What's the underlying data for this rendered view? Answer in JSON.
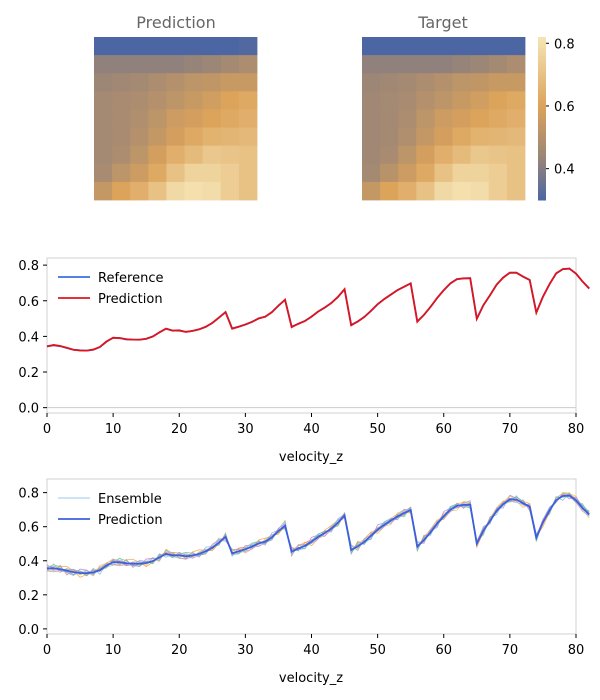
{
  "colors": {
    "reference": "#3b6fe0",
    "prediction_line": "#e0141c",
    "ensemble_prediction": "#3b5fe0",
    "axis_border": "#d0d0d0",
    "colormap": [
      "#4c66a3",
      "#9c8676",
      "#dca35b",
      "#f6e5b5"
    ]
  },
  "chart_data": [
    {
      "type": "heatmap",
      "title": "Prediction",
      "rows": 9,
      "cols": 9,
      "values": [
        [
          0.3,
          0.3,
          0.3,
          0.3,
          0.3,
          0.29,
          0.29,
          0.3,
          0.31
        ],
        [
          0.42,
          0.42,
          0.42,
          0.42,
          0.42,
          0.43,
          0.44,
          0.46,
          0.48
        ],
        [
          0.44,
          0.45,
          0.46,
          0.48,
          0.5,
          0.52,
          0.53,
          0.55,
          0.55
        ],
        [
          0.46,
          0.47,
          0.48,
          0.5,
          0.52,
          0.55,
          0.57,
          0.6,
          0.62
        ],
        [
          0.46,
          0.47,
          0.49,
          0.52,
          0.56,
          0.58,
          0.6,
          0.62,
          0.64
        ],
        [
          0.46,
          0.47,
          0.5,
          0.54,
          0.58,
          0.62,
          0.65,
          0.66,
          0.67
        ],
        [
          0.46,
          0.48,
          0.52,
          0.58,
          0.64,
          0.68,
          0.72,
          0.71,
          0.7
        ],
        [
          0.47,
          0.52,
          0.56,
          0.62,
          0.7,
          0.76,
          0.76,
          0.74,
          0.7
        ],
        [
          0.54,
          0.6,
          0.64,
          0.7,
          0.78,
          0.8,
          0.79,
          0.74,
          0.7
        ]
      ]
    },
    {
      "type": "heatmap",
      "title": "Target",
      "rows": 9,
      "cols": 9,
      "values": [
        [
          0.3,
          0.3,
          0.3,
          0.3,
          0.3,
          0.29,
          0.29,
          0.3,
          0.3
        ],
        [
          0.42,
          0.42,
          0.42,
          0.42,
          0.42,
          0.43,
          0.44,
          0.46,
          0.48
        ],
        [
          0.44,
          0.45,
          0.46,
          0.48,
          0.5,
          0.52,
          0.53,
          0.55,
          0.55
        ],
        [
          0.45,
          0.46,
          0.47,
          0.5,
          0.52,
          0.55,
          0.57,
          0.6,
          0.62
        ],
        [
          0.45,
          0.46,
          0.48,
          0.52,
          0.56,
          0.58,
          0.6,
          0.62,
          0.64
        ],
        [
          0.45,
          0.46,
          0.49,
          0.54,
          0.58,
          0.62,
          0.65,
          0.66,
          0.67
        ],
        [
          0.45,
          0.47,
          0.52,
          0.58,
          0.64,
          0.68,
          0.72,
          0.71,
          0.7
        ],
        [
          0.46,
          0.51,
          0.56,
          0.62,
          0.7,
          0.76,
          0.76,
          0.74,
          0.7
        ],
        [
          0.54,
          0.6,
          0.64,
          0.7,
          0.78,
          0.8,
          0.79,
          0.74,
          0.7
        ]
      ],
      "colorbar": {
        "ticks": [
          0.4,
          0.6,
          0.8
        ],
        "tick_labels": [
          "0.4",
          "0.6",
          "0.8"
        ],
        "range": [
          0.3,
          0.82
        ]
      }
    },
    {
      "type": "line",
      "xlabel": "velocity_z",
      "xlim": [
        0,
        80
      ],
      "ylim": [
        -0.03,
        0.84
      ],
      "xticks": [
        0,
        10,
        20,
        30,
        40,
        50,
        60,
        70,
        80
      ],
      "xtick_labels": [
        "0",
        "10",
        "20",
        "30",
        "40",
        "50",
        "60",
        "70",
        "80"
      ],
      "yticks": [
        0.0,
        0.2,
        0.4,
        0.6,
        0.8
      ],
      "ytick_labels": [
        "0.0",
        "0.2",
        "0.4",
        "0.6",
        "0.8"
      ],
      "legend_position": "upper-left",
      "series": [
        {
          "name": "Reference",
          "values": [
            0.345,
            0.35,
            0.345,
            0.335,
            0.325,
            0.322,
            0.32,
            0.325,
            0.34,
            0.37,
            0.393,
            0.39,
            0.383,
            0.382,
            0.382,
            0.386,
            0.4,
            0.422,
            0.444,
            0.433,
            0.432,
            0.426,
            0.43,
            0.44,
            0.453,
            0.476,
            0.505,
            0.537,
            0.445,
            0.455,
            0.466,
            0.482,
            0.5,
            0.511,
            0.535,
            0.573,
            0.605,
            0.455,
            0.47,
            0.487,
            0.51,
            0.54,
            0.561,
            0.588,
            0.621,
            0.664,
            0.465,
            0.483,
            0.51,
            0.543,
            0.58,
            0.61,
            0.634,
            0.66,
            0.678,
            0.698,
            0.485,
            0.52,
            0.566,
            0.615,
            0.66,
            0.697,
            0.722,
            0.725,
            0.727,
            0.5,
            0.575,
            0.632,
            0.69,
            0.731,
            0.757,
            0.758,
            0.735,
            0.717,
            0.535,
            0.622,
            0.694,
            0.753,
            0.778,
            0.78,
            0.753,
            0.707,
            0.67
          ]
        },
        {
          "name": "Prediction",
          "values": [
            0.343,
            0.352,
            0.346,
            0.336,
            0.325,
            0.321,
            0.32,
            0.326,
            0.341,
            0.372,
            0.392,
            0.391,
            0.384,
            0.382,
            0.381,
            0.387,
            0.399,
            0.423,
            0.443,
            0.432,
            0.434,
            0.425,
            0.431,
            0.439,
            0.454,
            0.475,
            0.506,
            0.536,
            0.443,
            0.454,
            0.467,
            0.481,
            0.501,
            0.51,
            0.536,
            0.572,
            0.606,
            0.452,
            0.471,
            0.486,
            0.511,
            0.539,
            0.562,
            0.587,
            0.622,
            0.665,
            0.462,
            0.484,
            0.509,
            0.544,
            0.581,
            0.609,
            0.635,
            0.659,
            0.679,
            0.697,
            0.482,
            0.521,
            0.565,
            0.616,
            0.659,
            0.698,
            0.721,
            0.726,
            0.726,
            0.498,
            0.576,
            0.631,
            0.691,
            0.73,
            0.758,
            0.757,
            0.736,
            0.716,
            0.533,
            0.623,
            0.693,
            0.754,
            0.777,
            0.781,
            0.752,
            0.708,
            0.668
          ]
        }
      ]
    },
    {
      "type": "line",
      "xlabel": "velocity_z",
      "xlim": [
        0,
        80
      ],
      "ylim": [
        -0.03,
        0.88
      ],
      "xticks": [
        0,
        10,
        20,
        30,
        40,
        50,
        60,
        70,
        80
      ],
      "xtick_labels": [
        "0",
        "10",
        "20",
        "30",
        "40",
        "50",
        "60",
        "70",
        "80"
      ],
      "yticks": [
        0.0,
        0.2,
        0.4,
        0.6,
        0.8
      ],
      "ytick_labels": [
        "0.0",
        "0.2",
        "0.4",
        "0.6",
        "0.8"
      ],
      "legend_position": "upper-left",
      "legend": [
        "Ensemble",
        "Prediction"
      ],
      "ensemble_colors": [
        "#e07a7a",
        "#9bd07a",
        "#e0c84a",
        "#7ab8e0",
        "#c07ae0",
        "#f0a050",
        "#70c0b0",
        "#a0a0e8"
      ],
      "ensemble_offsets": [
        [
          0.01,
          -0.012,
          0.018,
          -0.02,
          0.008,
          0.014,
          -0.016,
          0.022,
          -0.01,
          0.015
        ],
        [
          -0.014,
          0.02,
          -0.008,
          0.012,
          -0.018,
          0.01,
          0.024,
          -0.012,
          0.016,
          -0.006
        ],
        [
          0.018,
          -0.006,
          -0.02,
          0.016,
          0.012,
          -0.014,
          0.006,
          -0.018,
          0.022,
          0.01
        ],
        [
          -0.008,
          0.014,
          0.01,
          -0.016,
          0.02,
          0.006,
          -0.012,
          0.018,
          -0.02,
          0.012
        ],
        [
          0.022,
          0.008,
          -0.014,
          -0.006,
          -0.012,
          0.018,
          0.014,
          -0.008,
          0.01,
          -0.018
        ],
        [
          -0.018,
          -0.01,
          0.016,
          0.02,
          0.006,
          -0.02,
          -0.008,
          0.012,
          0.014,
          0.018
        ],
        [
          0.006,
          0.018,
          0.012,
          -0.01,
          -0.016,
          0.012,
          -0.02,
          0.016,
          -0.006,
          -0.012
        ],
        [
          -0.012,
          -0.016,
          -0.006,
          0.008,
          0.018,
          -0.008,
          0.02,
          -0.02,
          0.018,
          0.008
        ]
      ],
      "prediction": [
        0.355,
        0.356,
        0.35,
        0.342,
        0.333,
        0.328,
        0.327,
        0.332,
        0.345,
        0.372,
        0.392,
        0.391,
        0.385,
        0.383,
        0.382,
        0.387,
        0.398,
        0.42,
        0.441,
        0.432,
        0.432,
        0.426,
        0.431,
        0.44,
        0.455,
        0.476,
        0.507,
        0.54,
        0.444,
        0.455,
        0.468,
        0.483,
        0.502,
        0.512,
        0.537,
        0.574,
        0.606,
        0.453,
        0.472,
        0.487,
        0.512,
        0.54,
        0.563,
        0.589,
        0.623,
        0.666,
        0.463,
        0.485,
        0.511,
        0.546,
        0.583,
        0.611,
        0.636,
        0.66,
        0.68,
        0.698,
        0.483,
        0.522,
        0.567,
        0.618,
        0.661,
        0.7,
        0.723,
        0.728,
        0.729,
        0.5,
        0.578,
        0.634,
        0.693,
        0.733,
        0.76,
        0.759,
        0.738,
        0.718,
        0.535,
        0.625,
        0.696,
        0.756,
        0.78,
        0.783,
        0.755,
        0.71,
        0.672
      ]
    }
  ]
}
